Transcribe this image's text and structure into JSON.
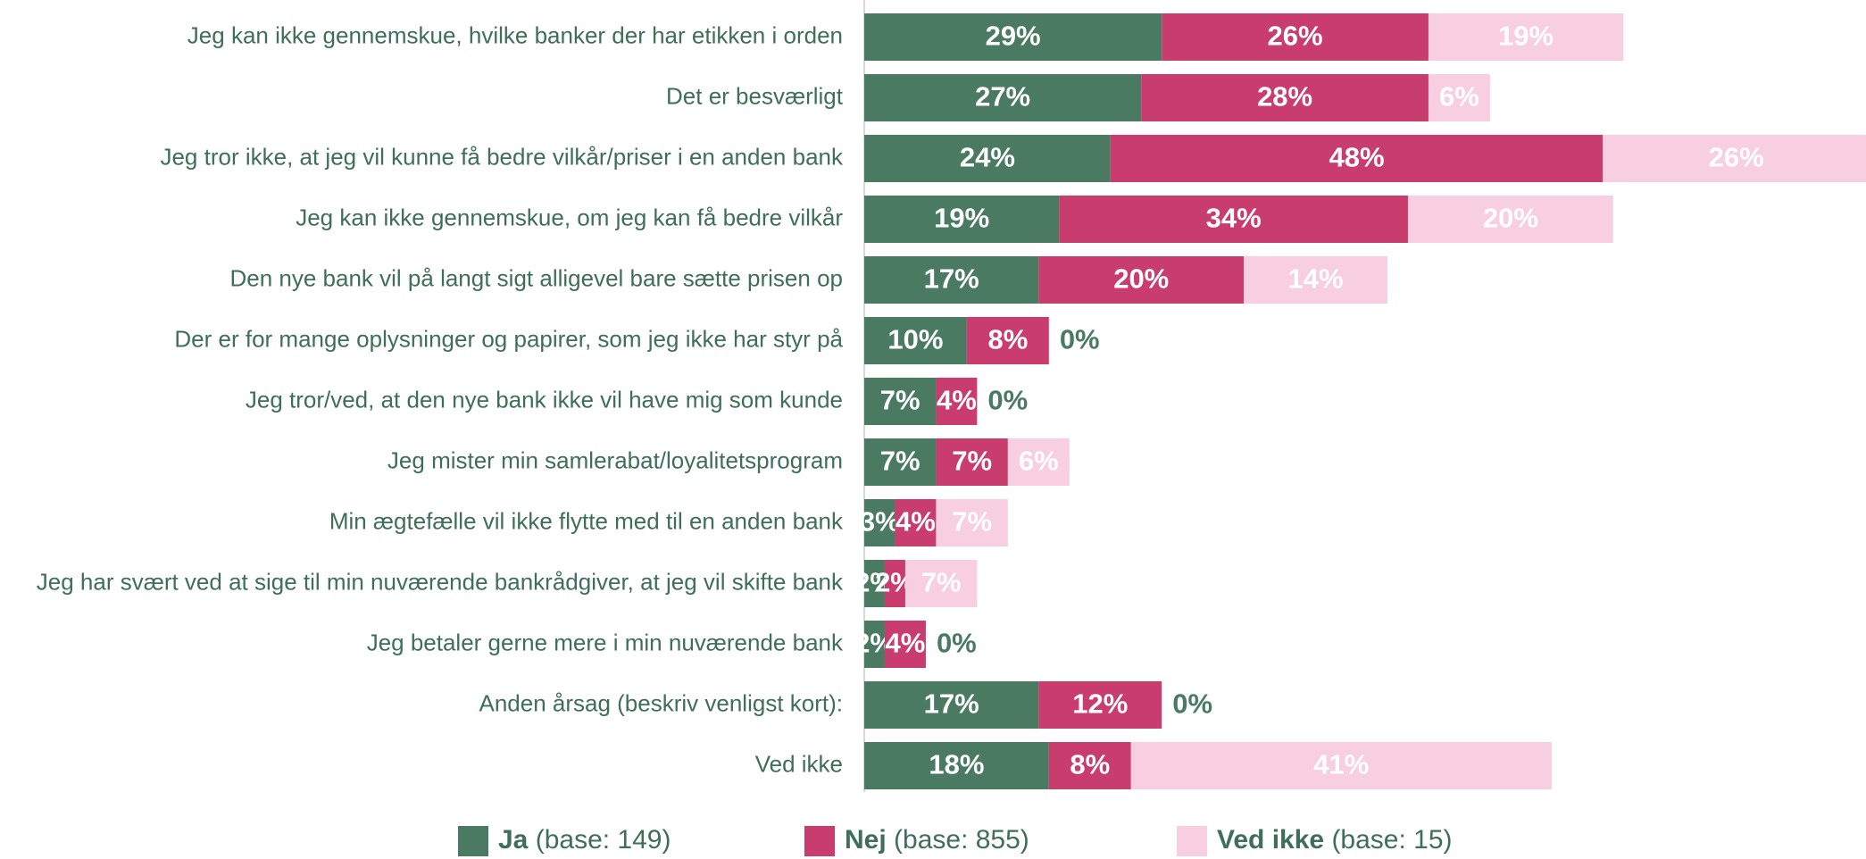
{
  "chart_data": {
    "type": "stacked_barh",
    "categories": [
      "Jeg kan ikke gennemskue, hvilke banker der har etikken i orden",
      "Det er besværligt",
      "Jeg tror ikke, at jeg vil kunne få bedre vilkår/priser i en anden bank",
      "Jeg kan ikke gennemskue, om jeg kan få bedre vilkår",
      "Den nye bank vil på langt sigt alligevel bare sætte prisen op",
      "Der er for mange oplysninger og papirer, som jeg ikke har styr på",
      "Jeg tror/ved, at den nye bank ikke vil have mig som kunde",
      "Jeg mister min samlerabat/loyalitetsprogram",
      "Min ægtefælle vil ikke flytte med til en anden bank",
      "Jeg har svært ved at sige til min nuværende bankrådgiver, at jeg vil skifte bank",
      "Jeg betaler gerne mere i min nuværende bank",
      "Anden årsag (beskriv venligst kort):",
      "Ved ikke"
    ],
    "series": [
      {
        "name": "Ja",
        "note": "(base: 149)",
        "color": "#4a7a62",
        "values": [
          29,
          27,
          24,
          19,
          17,
          10,
          7,
          7,
          3,
          2,
          2,
          17,
          18
        ],
        "value_labels": [
          "29%",
          "27%",
          "24%",
          "19%",
          "17%",
          "10%",
          "7%",
          "7%",
          "3%",
          "2%",
          "2%",
          "17%",
          "18%"
        ]
      },
      {
        "name": "Nej",
        "note": "(base: 855)",
        "color": "#c83d6e",
        "values": [
          26,
          28,
          48,
          34,
          20,
          8,
          4,
          7,
          4,
          2,
          4,
          12,
          8
        ],
        "value_labels": [
          "26%",
          "28%",
          "48%",
          "34%",
          "20%",
          "8%",
          "4%",
          "7%",
          "4%",
          "2%",
          "4%",
          "12%",
          "8%"
        ]
      },
      {
        "name": "Ved ikke",
        "note": "(base: 15)",
        "color": "#f7cfe0",
        "values": [
          19,
          6,
          26,
          20,
          14,
          0,
          0,
          6,
          7,
          7,
          0,
          0,
          41
        ],
        "value_labels": [
          "19%",
          "6%",
          "26%",
          "20%",
          "14%",
          "0%",
          "0%",
          "6%",
          "7%",
          "7%",
          "0%",
          "0%",
          "41%"
        ]
      }
    ]
  }
}
